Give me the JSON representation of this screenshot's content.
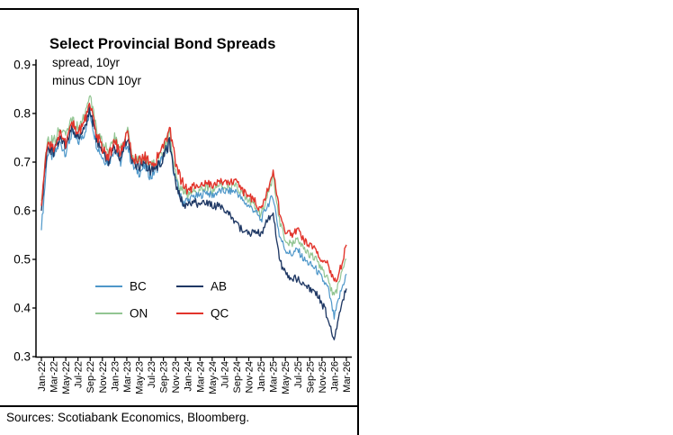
{
  "page": {
    "sources": "Sources: Scotiabank Economics, Bloomberg."
  },
  "chart": {
    "title": "Select Provincial Bond Spreads",
    "subtitle_line1": "spread, 10yr",
    "subtitle_line2": "minus CDN 10yr"
  },
  "chart_data": {
    "type": "line",
    "title": "Select Provincial Bond Spreads",
    "subtitle": "spread, 10yr minus CDN 10yr",
    "ylabel": "",
    "xlabel": "",
    "ylim": [
      0.3,
      0.9
    ],
    "y_ticks": [
      0.3,
      0.4,
      0.5,
      0.6,
      0.7,
      0.8,
      0.9
    ],
    "grid": false,
    "legend_position": "inside-lower-left",
    "x_ticklabels": [
      "Jan-22",
      "Mar-22",
      "May-22",
      "Jul-22",
      "Sep-22",
      "Nov-22",
      "Jan-23",
      "Mar-23",
      "May-23",
      "Jul-23",
      "Sep-23",
      "Nov-23",
      "Jan-24",
      "Mar-24",
      "May-24",
      "Jul-24",
      "Sep-24",
      "Nov-24",
      "Jan-25",
      "Mar-25",
      "May-25",
      "Jul-25",
      "Sep-25",
      "Nov-25",
      "Jan-26",
      "Mar-26"
    ],
    "months": [
      "Jan-22",
      "Feb-22",
      "Mar-22",
      "Apr-22",
      "May-22",
      "Jun-22",
      "Jul-22",
      "Aug-22",
      "Sep-22",
      "Oct-22",
      "Nov-22",
      "Dec-22",
      "Jan-23",
      "Feb-23",
      "Mar-23",
      "Apr-23",
      "May-23",
      "Jun-23",
      "Jul-23",
      "Aug-23",
      "Sep-23",
      "Oct-23",
      "Nov-23",
      "Dec-23",
      "Jan-24",
      "Feb-24",
      "Mar-24",
      "Apr-24",
      "May-24",
      "Jun-24",
      "Jul-24",
      "Aug-24",
      "Sep-24",
      "Oct-24",
      "Nov-24",
      "Dec-24",
      "Jan-25",
      "Feb-25",
      "Mar-25",
      "Apr-25",
      "May-25",
      "Jun-25",
      "Jul-25",
      "Aug-25",
      "Sep-25",
      "Oct-25",
      "Nov-25",
      "Dec-25",
      "Jan-26",
      "Feb-26",
      "Mar-26"
    ],
    "series": [
      {
        "name": "BC",
        "color": "#4E97C9",
        "values": [
          0.56,
          0.72,
          0.71,
          0.74,
          0.72,
          0.76,
          0.74,
          0.76,
          0.8,
          0.74,
          0.71,
          0.7,
          0.73,
          0.7,
          0.74,
          0.69,
          0.68,
          0.69,
          0.67,
          0.69,
          0.71,
          0.74,
          0.66,
          0.62,
          0.62,
          0.63,
          0.63,
          0.64,
          0.63,
          0.64,
          0.64,
          0.64,
          0.64,
          0.62,
          0.61,
          0.6,
          0.58,
          0.61,
          0.63,
          0.55,
          0.52,
          0.51,
          0.52,
          0.5,
          0.49,
          0.48,
          0.46,
          0.44,
          0.38,
          0.43,
          0.47
        ]
      },
      {
        "name": "AB",
        "color": "#1F3864",
        "values": [
          0.6,
          0.73,
          0.72,
          0.75,
          0.73,
          0.77,
          0.75,
          0.77,
          0.81,
          0.75,
          0.72,
          0.7,
          0.73,
          0.71,
          0.75,
          0.7,
          0.69,
          0.7,
          0.68,
          0.69,
          0.71,
          0.74,
          0.66,
          0.62,
          0.61,
          0.62,
          0.61,
          0.62,
          0.61,
          0.61,
          0.6,
          0.59,
          0.57,
          0.56,
          0.55,
          0.56,
          0.55,
          0.58,
          0.6,
          0.5,
          0.47,
          0.46,
          0.46,
          0.45,
          0.44,
          0.43,
          0.41,
          0.38,
          0.33,
          0.4,
          0.44
        ]
      },
      {
        "name": "ON",
        "color": "#92C592",
        "values": [
          0.62,
          0.75,
          0.74,
          0.77,
          0.75,
          0.79,
          0.77,
          0.79,
          0.83,
          0.77,
          0.74,
          0.72,
          0.75,
          0.72,
          0.77,
          0.71,
          0.7,
          0.71,
          0.69,
          0.7,
          0.72,
          0.76,
          0.68,
          0.64,
          0.63,
          0.64,
          0.64,
          0.65,
          0.64,
          0.65,
          0.65,
          0.65,
          0.65,
          0.63,
          0.62,
          0.61,
          0.59,
          0.63,
          0.67,
          0.58,
          0.54,
          0.53,
          0.54,
          0.52,
          0.51,
          0.5,
          0.48,
          0.46,
          0.42,
          0.46,
          0.5
        ]
      },
      {
        "name": "QC",
        "color": "#E2342B",
        "values": [
          0.61,
          0.74,
          0.73,
          0.76,
          0.74,
          0.78,
          0.76,
          0.78,
          0.82,
          0.76,
          0.73,
          0.71,
          0.74,
          0.72,
          0.76,
          0.71,
          0.7,
          0.71,
          0.69,
          0.71,
          0.73,
          0.77,
          0.7,
          0.66,
          0.64,
          0.65,
          0.65,
          0.66,
          0.65,
          0.66,
          0.66,
          0.66,
          0.66,
          0.64,
          0.63,
          0.62,
          0.6,
          0.64,
          0.68,
          0.6,
          0.56,
          0.55,
          0.56,
          0.54,
          0.53,
          0.52,
          0.5,
          0.49,
          0.45,
          0.48,
          0.53
        ]
      }
    ]
  }
}
